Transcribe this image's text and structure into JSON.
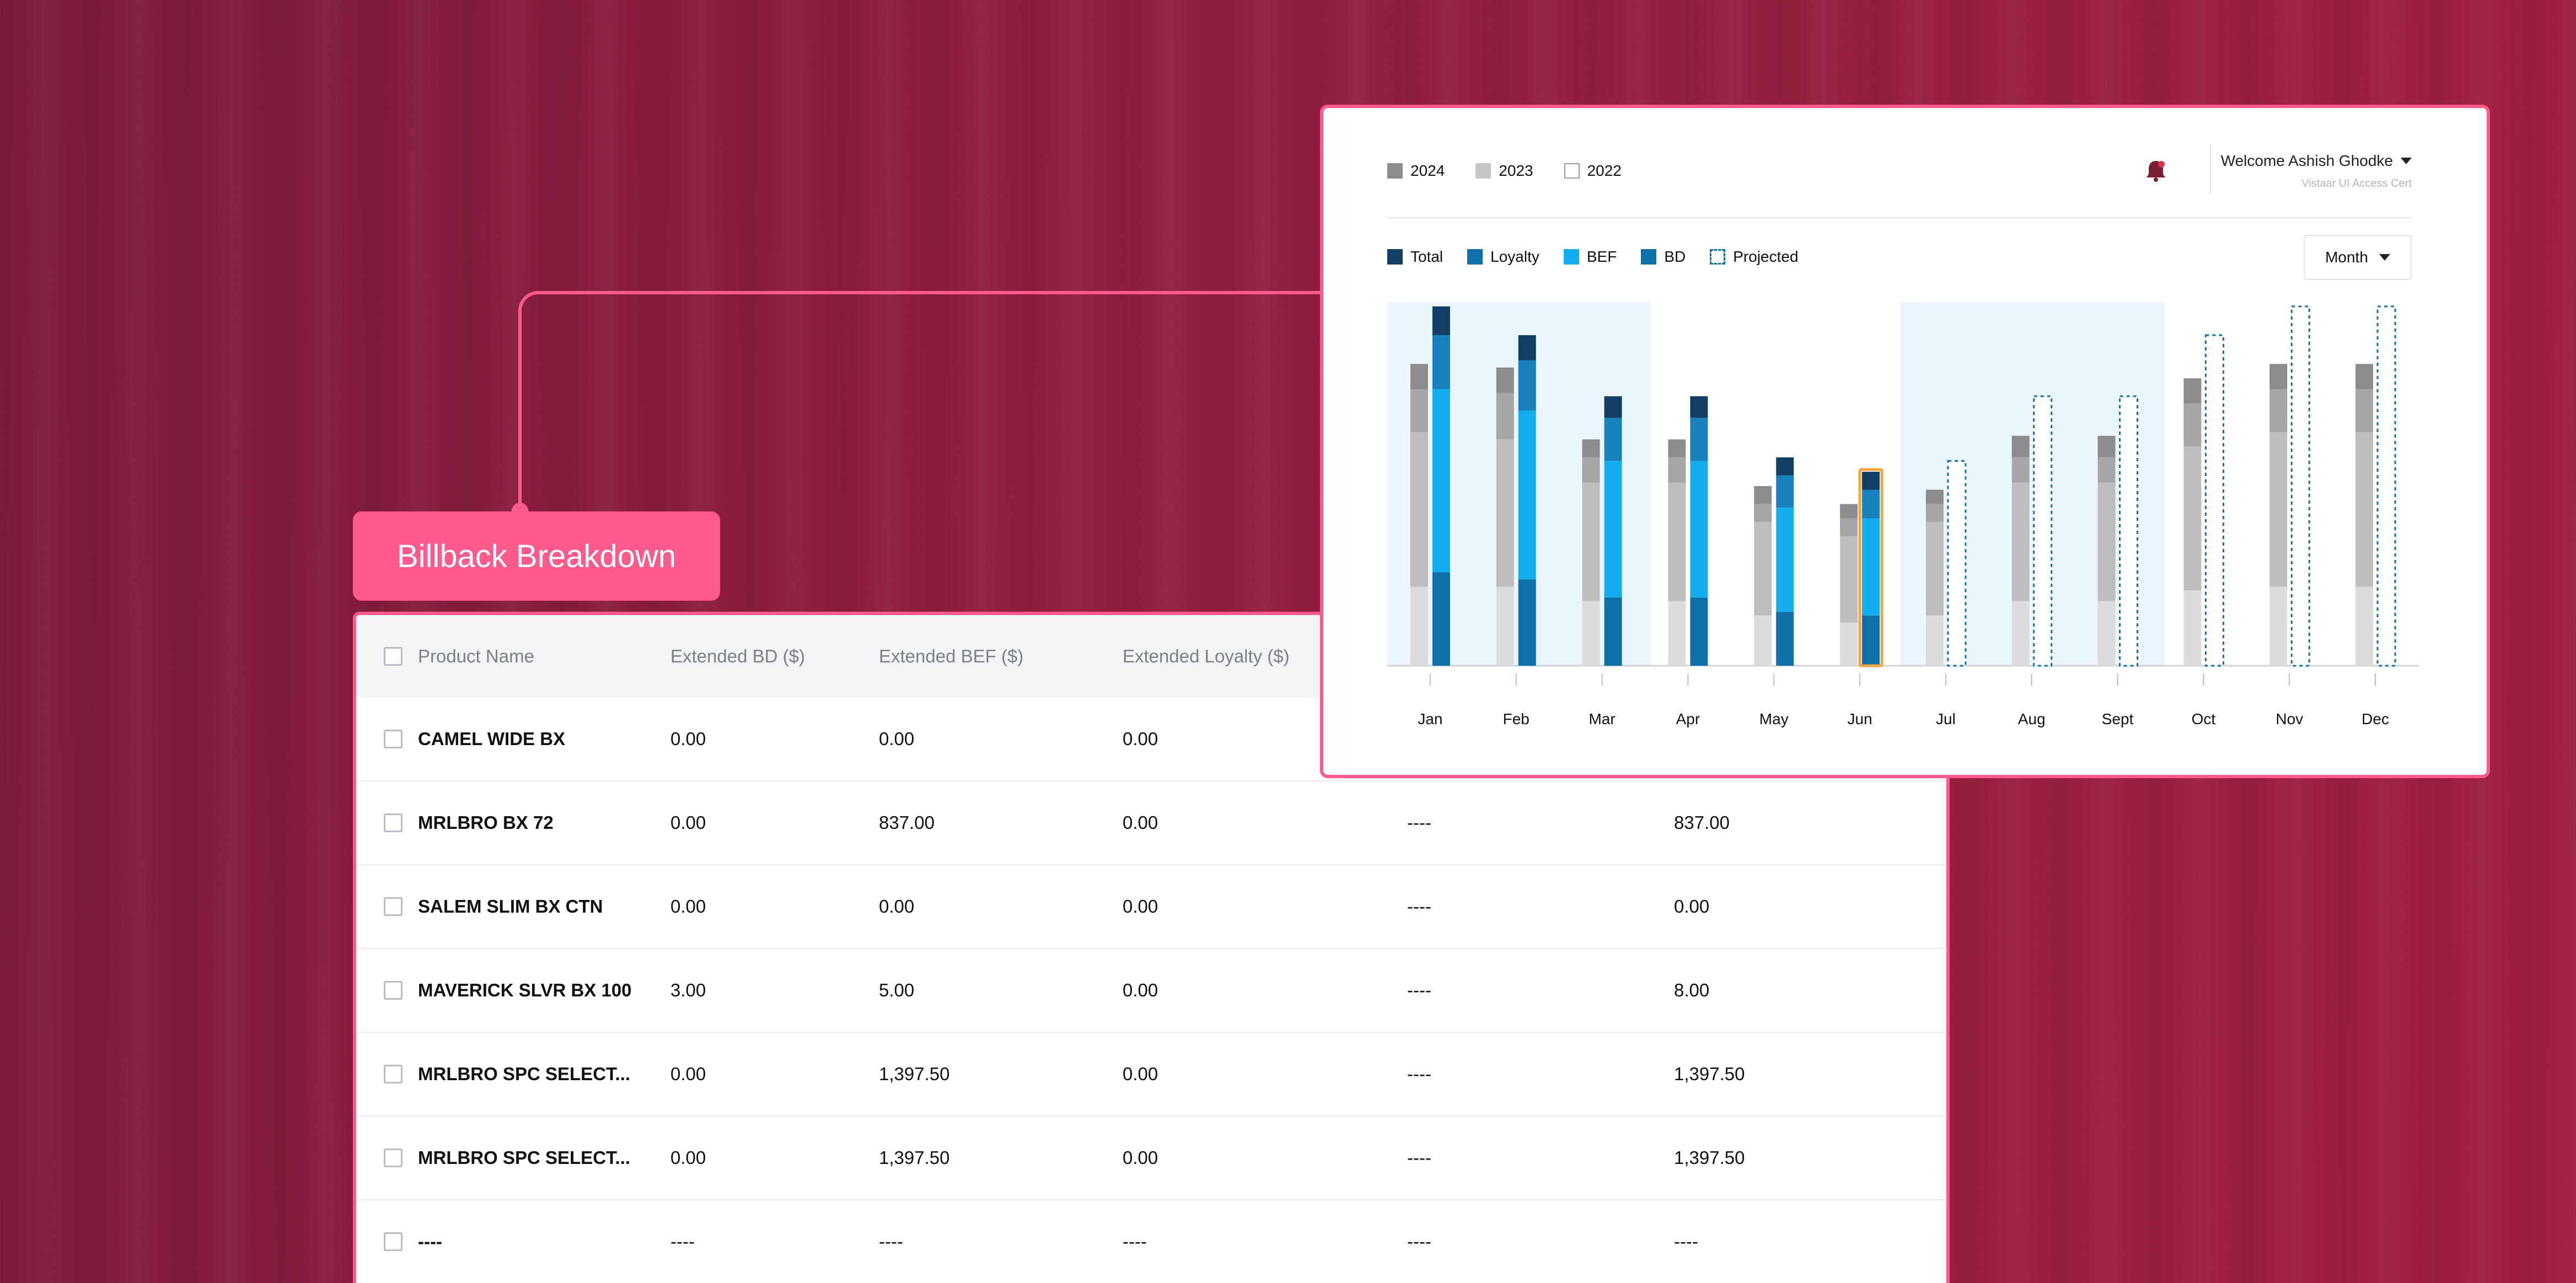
{
  "badge": {
    "title": "Billback Breakdown"
  },
  "table": {
    "headers": [
      "Product Name",
      "Extended BD ($)",
      "Extended BEF ($)",
      "Extended Loyalty ($)"
    ],
    "rows": [
      [
        "CAMEL WIDE BX",
        "0.00",
        "0.00",
        "0.00",
        "",
        ""
      ],
      [
        "MRLBRO BX 72",
        "0.00",
        "837.00",
        "0.00",
        "----",
        "837.00"
      ],
      [
        "SALEM SLIM BX CTN",
        "0.00",
        "0.00",
        "0.00",
        "----",
        "0.00"
      ],
      [
        "MAVERICK SLVR BX 100",
        "3.00",
        "5.00",
        "0.00",
        "----",
        "8.00"
      ],
      [
        "MRLBRO SPC SELECT...",
        "0.00",
        "1,397.50",
        "0.00",
        "----",
        "1,397.50"
      ],
      [
        "MRLBRO SPC SELECT...",
        "0.00",
        "1,397.50",
        "0.00",
        "----",
        "1,397.50"
      ],
      [
        "----",
        "----",
        "----",
        "----",
        "----",
        "----"
      ]
    ]
  },
  "header": {
    "user_name": "Welcome Ashish Ghodke",
    "user_sub": "Vistaar UI Access Cert",
    "period_select": "Month"
  },
  "year_legend": [
    {
      "label": "2024",
      "color": "#8c8c8c"
    },
    {
      "label": "2023",
      "color": "#c6c6c6"
    },
    {
      "label": "2022",
      "color": "#ffffff"
    }
  ],
  "series_legend": [
    {
      "label": "Total",
      "color": "#123e63"
    },
    {
      "label": "Loyalty",
      "color": "#0f6fa8"
    },
    {
      "label": "BEF",
      "color": "#14aef0"
    },
    {
      "label": "BD",
      "color": "#0f6fa8"
    },
    {
      "label": "Projected",
      "color": "#0f6fa8",
      "dashed": true
    }
  ],
  "colors": {
    "accent": "#ff5a8c",
    "highlight": "#f3a43b",
    "band": "#eaf6fc"
  },
  "chart_data": {
    "type": "bar",
    "categories": [
      "Jan",
      "Feb",
      "Mar",
      "Apr",
      "May",
      "Jun",
      "Jul",
      "Aug",
      "Sept",
      "Oct",
      "Nov",
      "Dec"
    ],
    "highlighted_category": "Jun",
    "ylim": [
      0,
      100
    ],
    "grey_stacks": [
      [
        22,
        43,
        12,
        7
      ],
      [
        22,
        41,
        13,
        7
      ],
      [
        18,
        33,
        7,
        5
      ],
      [
        18,
        33,
        7,
        5
      ],
      [
        14,
        26,
        5,
        5
      ],
      [
        12,
        24,
        5,
        4
      ],
      [
        14,
        26,
        5,
        4
      ],
      [
        18,
        33,
        7,
        6
      ],
      [
        18,
        33,
        7,
        6
      ],
      [
        21,
        40,
        12,
        7
      ],
      [
        22,
        43,
        12,
        7
      ],
      [
        22,
        43,
        12,
        7
      ]
    ],
    "series": [
      {
        "name": "BD",
        "values": [
          26,
          24,
          19,
          19,
          15,
          14,
          0,
          0,
          0,
          0,
          0,
          0
        ]
      },
      {
        "name": "BEF",
        "values": [
          51,
          47,
          38,
          38,
          29,
          27,
          0,
          0,
          0,
          0,
          0,
          0
        ]
      },
      {
        "name": "Loyalty",
        "values": [
          15,
          14,
          12,
          12,
          9,
          8,
          0,
          0,
          0,
          0,
          0,
          0
        ]
      },
      {
        "name": "Total",
        "values": [
          8,
          7,
          6,
          6,
          5,
          5,
          0,
          0,
          0,
          0,
          0,
          0
        ]
      },
      {
        "name": "Projected",
        "values": [
          0,
          0,
          0,
          0,
          0,
          0,
          57,
          75,
          75,
          92,
          100,
          100
        ]
      }
    ]
  }
}
